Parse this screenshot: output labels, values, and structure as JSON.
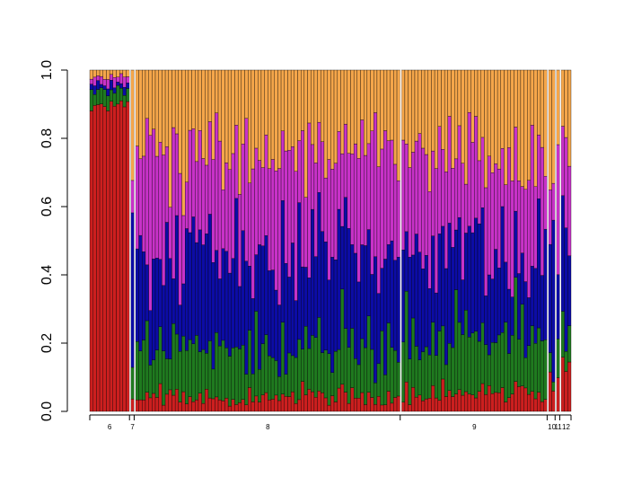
{
  "chart_data": {
    "type": "bar",
    "subtype": "stacked-100",
    "title": "",
    "xlabel": "",
    "ylabel": "",
    "ylim": [
      0,
      1
    ],
    "yticks": [
      "0.0",
      "0.2",
      "0.4",
      "0.6",
      "0.8",
      "1.0"
    ],
    "grid": false,
    "legend": "none",
    "components": [
      {
        "color": "#cc1f1f"
      },
      {
        "color": "#1f7a1f"
      },
      {
        "color": "#0c0ca6"
      },
      {
        "color": "#c832c8"
      },
      {
        "color": "#f5a64a"
      }
    ],
    "groups": [
      {
        "label": "6",
        "count": 12
      },
      {
        "label": "7",
        "count": 1
      },
      {
        "label": "8",
        "count": 80
      },
      {
        "label": "9",
        "count": 44
      },
      {
        "label": "10",
        "count": 2
      },
      {
        "label": "11",
        "count": 1
      },
      {
        "label": "12",
        "count": 3
      }
    ],
    "group_profiles": [
      {
        "label": "6",
        "values": [
          0.9,
          0.04,
          0.02,
          0.02,
          0.02
        ]
      },
      {
        "label": "7",
        "values": [
          0.05,
          0.1,
          0.45,
          0.15,
          0.25
        ]
      },
      {
        "label": "8",
        "values": [
          0.04,
          0.14,
          0.27,
          0.3,
          0.25
        ]
      },
      {
        "label": "9",
        "values": [
          0.05,
          0.15,
          0.27,
          0.28,
          0.25
        ]
      },
      {
        "label": "10",
        "values": [
          0.07,
          0.05,
          0.38,
          0.25,
          0.25
        ]
      },
      {
        "label": "11",
        "values": [
          0.1,
          0.1,
          0.2,
          0.4,
          0.2
        ]
      },
      {
        "label": "12",
        "values": [
          0.15,
          0.08,
          0.25,
          0.32,
          0.2
        ]
      }
    ]
  }
}
